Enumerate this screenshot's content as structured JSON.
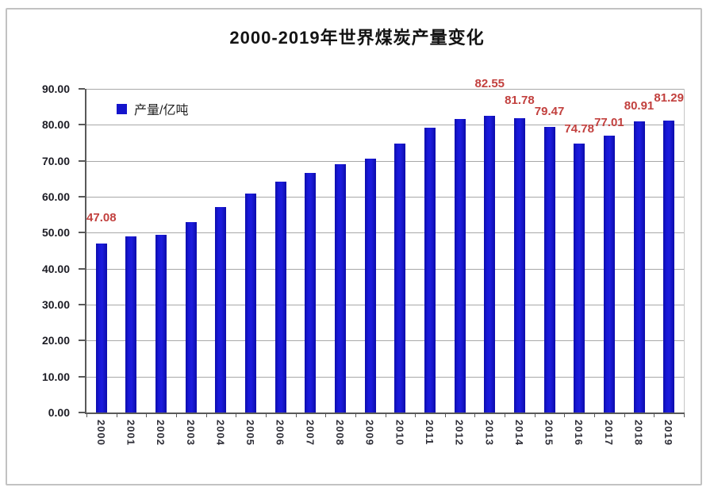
{
  "page": {
    "background": "#ffffff",
    "frame_border_color": "#c2c2c2"
  },
  "chart": {
    "title": "2000-2019年世界煤炭产量变化",
    "legend": {
      "swatch_color": "#1414cc",
      "label": "产量/亿吨"
    },
    "colors": {
      "bar": "#1414cc",
      "data_label": "#c2403e",
      "gridline": "#a8a8a8",
      "axis": "#595959",
      "ytick_text": "#1c1c24",
      "year_text": "#2f2f38"
    }
  },
  "chart_data": {
    "type": "bar",
    "title": "2000-2019年世界煤炭产量变化",
    "xlabel": "",
    "ylabel": "产量/亿吨",
    "categories": [
      "2000",
      "2001",
      "2002",
      "2003",
      "2004",
      "2005",
      "2006",
      "2007",
      "2008",
      "2009",
      "2010",
      "2011",
      "2012",
      "2013",
      "2014",
      "2015",
      "2016",
      "2017",
      "2018",
      "2019"
    ],
    "series": [
      {
        "name": "产量/亿吨",
        "values": [
          47.08,
          49.0,
          49.5,
          53.0,
          57.2,
          60.9,
          64.2,
          66.6,
          69.1,
          70.5,
          74.7,
          79.3,
          81.7,
          82.55,
          81.78,
          79.47,
          74.78,
          77.01,
          80.91,
          81.29
        ]
      }
    ],
    "data_labels": [
      "47.08",
      null,
      null,
      null,
      null,
      null,
      null,
      null,
      null,
      null,
      null,
      null,
      null,
      "82.55",
      "81.78",
      "79.47",
      "74.78",
      "77.01",
      "80.91",
      "81.29"
    ],
    "ylim": [
      0,
      90
    ],
    "ytick_step": 10,
    "ytick_labels": [
      "0.00",
      "10.00",
      "20.00",
      "30.00",
      "40.00",
      "50.00",
      "60.00",
      "70.00",
      "80.00",
      "90.00"
    ],
    "grid": true,
    "legend_position": "top-left-inside",
    "bar_color": "#1414cc",
    "data_label_color": "#c2403e"
  }
}
